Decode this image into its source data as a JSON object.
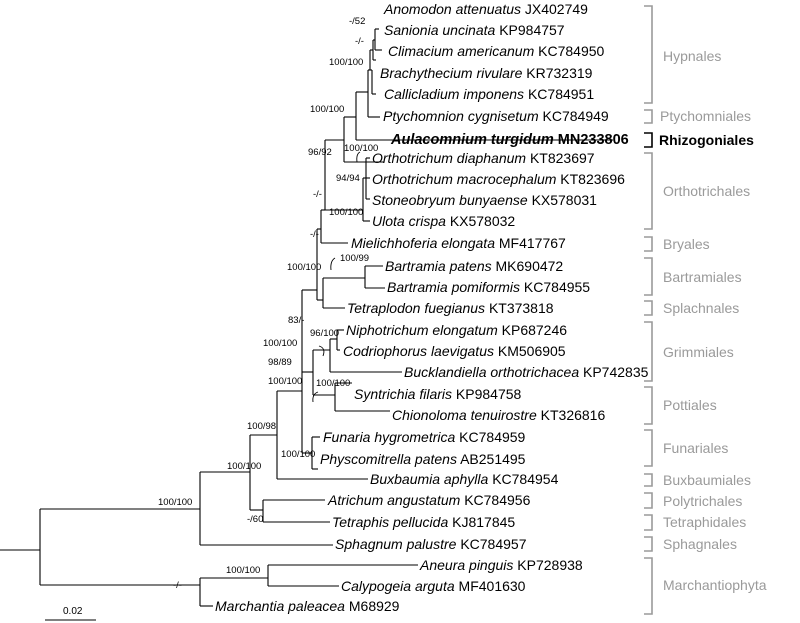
{
  "tips": [
    {
      "id": "t1",
      "species": "Anomodon attenuatus",
      "accession": "JX402749"
    },
    {
      "id": "t2",
      "species": "Sanionia uncinata",
      "accession": "KP984757"
    },
    {
      "id": "t3",
      "species": "Climacium americanum",
      "accession": "KC784950"
    },
    {
      "id": "t4",
      "species": "Brachythecium rivulare",
      "accession": "KR732319"
    },
    {
      "id": "t5",
      "species": "Callicladium imponens",
      "accession": "KC784951"
    },
    {
      "id": "t6",
      "species": "Ptychomnion cygnisetum",
      "accession": "KC784949"
    },
    {
      "id": "t7",
      "species": "Aulacomnium turgidum",
      "accession": "MN233806",
      "focal": true
    },
    {
      "id": "t8",
      "species": "Orthotrichum diaphanum",
      "accession": "KT823697"
    },
    {
      "id": "t9",
      "species": "Orthotrichum macrocephalum",
      "accession": "KT823696"
    },
    {
      "id": "t10",
      "species": "Stoneobryum bunyaense",
      "accession": "KX578031"
    },
    {
      "id": "t11",
      "species": "Ulota crispa",
      "accession": "KX578032"
    },
    {
      "id": "t12",
      "species": "Mielichhoferia elongata",
      "accession": "MF417767"
    },
    {
      "id": "t13",
      "species": "Bartramia patens",
      "accession": "MK690472"
    },
    {
      "id": "t14",
      "species": "Bartramia pomiformis",
      "accession": "KC784955"
    },
    {
      "id": "t15",
      "species": "Tetraplodon fuegianus",
      "accession": "KT373818"
    },
    {
      "id": "t16",
      "species": "Niphotrichum elongatum",
      "accession": "KP687246"
    },
    {
      "id": "t17",
      "species": "Codriophorus laevigatus",
      "accession": "KM506905"
    },
    {
      "id": "t18",
      "species": "Bucklandiella orthotrichacea",
      "accession": "KP742835"
    },
    {
      "id": "t19",
      "species": "Syntrichia filaris",
      "accession": "KP984758"
    },
    {
      "id": "t20",
      "species": "Chionoloma tenuirostre",
      "accession": "KT326816"
    },
    {
      "id": "t21",
      "species": "Funaria hygrometrica",
      "accession": "KC784959"
    },
    {
      "id": "t22",
      "species": "Physcomitrella patens",
      "accession": "AB251495"
    },
    {
      "id": "t23",
      "species": "Buxbaumia aphylla",
      "accession": "KC784954"
    },
    {
      "id": "t24",
      "species": "Atrichum angustatum",
      "accession": "KC784956"
    },
    {
      "id": "t25",
      "species": "Tetraphis pellucida",
      "accession": "KJ817845"
    },
    {
      "id": "t26",
      "species": "Sphagnum palustre",
      "accession": "KC784957"
    },
    {
      "id": "t27",
      "species": "Aneura pinguis",
      "accession": "KP728938"
    },
    {
      "id": "t28",
      "species": "Calypogeia arguta",
      "accession": "MF401630"
    },
    {
      "id": "t29",
      "species": "Marchantia paleacea",
      "accession": "M68929"
    }
  ],
  "support_values": [
    {
      "id": "s1",
      "text": "-/52"
    },
    {
      "id": "s2",
      "text": "-/-"
    },
    {
      "id": "s3",
      "text": "100/100"
    },
    {
      "id": "s4",
      "text": "100/100"
    },
    {
      "id": "s5",
      "text": "96/92"
    },
    {
      "id": "s6",
      "text": "100/100"
    },
    {
      "id": "s7",
      "text": "94/94"
    },
    {
      "id": "s8",
      "text": "100/100"
    },
    {
      "id": "s9",
      "text": "-/-"
    },
    {
      "id": "s10",
      "text": "-/-"
    },
    {
      "id": "s11",
      "text": "100/99"
    },
    {
      "id": "s12",
      "text": "100/100"
    },
    {
      "id": "s13",
      "text": "83/-"
    },
    {
      "id": "s14",
      "text": "96/100"
    },
    {
      "id": "s15",
      "text": "100/100"
    },
    {
      "id": "s16",
      "text": "98/89"
    },
    {
      "id": "s17",
      "text": "100/100"
    },
    {
      "id": "s18",
      "text": "100/100"
    },
    {
      "id": "s19",
      "text": "100/98"
    },
    {
      "id": "s20",
      "text": "100/100"
    },
    {
      "id": "s21",
      "text": "100/100"
    },
    {
      "id": "s22",
      "text": "100/100"
    },
    {
      "id": "s23",
      "text": "-/60"
    },
    {
      "id": "s24",
      "text": "100/100"
    },
    {
      "id": "s25",
      "text": "-/-"
    }
  ],
  "groups": [
    {
      "id": "g1",
      "label": "Hypnales"
    },
    {
      "id": "g2",
      "label": "Ptychomniales"
    },
    {
      "id": "g3",
      "label": "Rhizogoniales",
      "focal": true
    },
    {
      "id": "g4",
      "label": "Orthotrichales"
    },
    {
      "id": "g5",
      "label": "Bryales"
    },
    {
      "id": "g6",
      "label": "Bartramiales"
    },
    {
      "id": "g7",
      "label": "Splachnales"
    },
    {
      "id": "g8",
      "label": "Grimmiales"
    },
    {
      "id": "g9",
      "label": "Pottiales"
    },
    {
      "id": "g10",
      "label": "Funariales"
    },
    {
      "id": "g11",
      "label": "Buxbaumiales"
    },
    {
      "id": "g12",
      "label": "Polytrichales"
    },
    {
      "id": "g13",
      "label": "Tetraphidales"
    },
    {
      "id": "g14",
      "label": "Sphagnales"
    },
    {
      "id": "g15",
      "label": "Marchantiophyta"
    }
  ],
  "scale_bar": {
    "label": "0.02"
  },
  "colors": {
    "branch": "#000000",
    "group_bracket": "#9a9a9a",
    "focal": "#000000"
  }
}
